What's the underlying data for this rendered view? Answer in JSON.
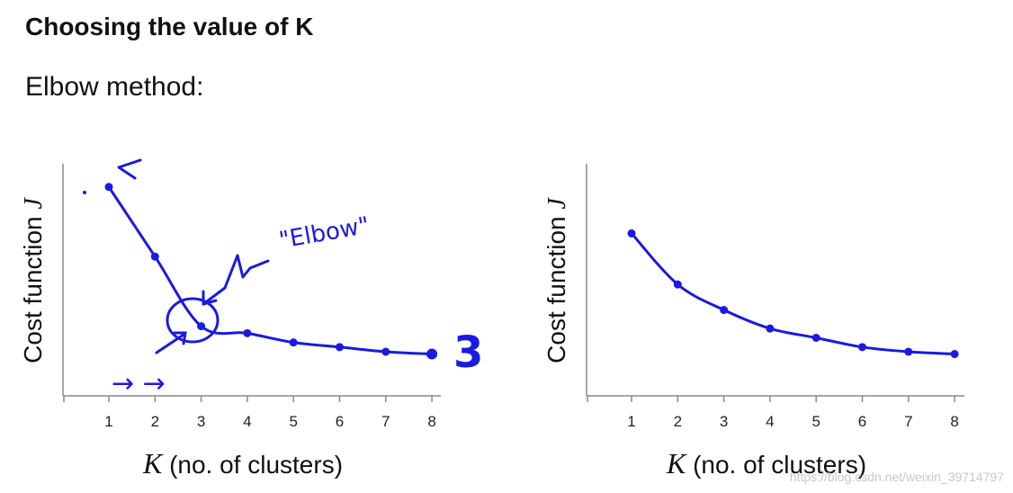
{
  "header": {
    "title": "Choosing the value of K",
    "subtitle": "Elbow method:"
  },
  "annotations": {
    "elbow_label": "\"Elbow\"",
    "arrows": "→ →",
    "three": "3"
  },
  "watermark": "https://blog.csdn.net/weixin_39714797",
  "colors": {
    "ink": "#1a1ae0",
    "axis": "#888888"
  },
  "chart_data": [
    {
      "type": "line",
      "title": "",
      "xlabel_var": "K",
      "xlabel": "(no. of clusters)",
      "ylabel_prefix": "Cost function ",
      "ylabel_var": "J",
      "categories": [
        "1",
        "2",
        "3",
        "4",
        "5",
        "6",
        "7",
        "8"
      ],
      "x": [
        1,
        2,
        3,
        4,
        5,
        6,
        7,
        8
      ],
      "values": [
        0.9,
        0.6,
        0.3,
        0.27,
        0.23,
        0.21,
        0.19,
        0.18
      ],
      "ylim": [
        0,
        1
      ],
      "grid": false,
      "legend": "none"
    },
    {
      "type": "line",
      "title": "",
      "xlabel_var": "K",
      "xlabel": "(no. of clusters)",
      "ylabel_prefix": "Cost function ",
      "ylabel_var": "J",
      "categories": [
        "1",
        "2",
        "3",
        "4",
        "5",
        "6",
        "7",
        "8"
      ],
      "x": [
        1,
        2,
        3,
        4,
        5,
        6,
        7,
        8
      ],
      "values": [
        0.7,
        0.48,
        0.37,
        0.29,
        0.25,
        0.21,
        0.19,
        0.18
      ],
      "ylim": [
        0,
        1
      ],
      "grid": false,
      "legend": "none"
    }
  ]
}
